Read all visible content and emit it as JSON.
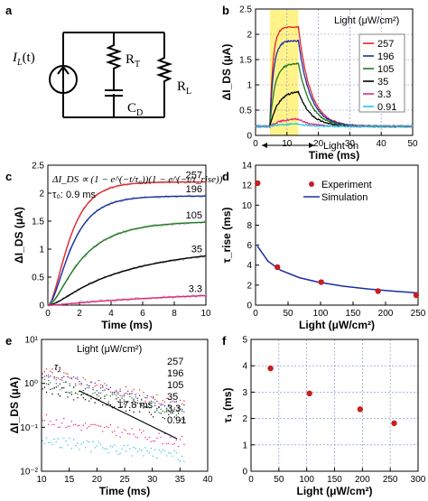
{
  "panel_labels": [
    "a",
    "b",
    "c",
    "d",
    "e",
    "f"
  ],
  "circuit": {
    "source": "I",
    "source_sub": "L",
    "source_arg": "(t)",
    "r1": "R",
    "r1_sub": "T",
    "cap": "C",
    "cap_sub": "D",
    "r2": "R",
    "r2_sub": "L"
  },
  "series_colors": {
    "257": "#e8242a",
    "196": "#1a2ea6",
    "105": "#1f7a1f",
    "35": "#000000",
    "3.3": "#e8247c",
    "0.91": "#1ec8e6"
  },
  "chart_data": [
    {
      "panel": "b",
      "type": "line",
      "xlabel": "Time (ms)",
      "ylabel": "ΔI_DS (μA)",
      "xlim": [
        -5,
        50
      ],
      "ylim": [
        -0.2,
        2.6
      ],
      "xticks": [
        "0",
        "10",
        "20",
        "30",
        "40",
        "50"
      ],
      "yticks": [
        "0",
        "0.5",
        "1",
        "1.5",
        "2",
        "2.5"
      ],
      "highlight": {
        "x": [
          0,
          10
        ],
        "color": "#fff38a"
      },
      "annotation": "Light on",
      "legend": {
        "title": "Light (μW/cm²)",
        "placement": "top-right",
        "entries": [
          "257",
          "196",
          "105",
          "35",
          "3.3",
          "0.91"
        ]
      },
      "series": [
        {
          "name": "257",
          "amp": 2.2,
          "tau": 1.1
        },
        {
          "name": "196",
          "amp": 1.9,
          "tau": 1.3
        },
        {
          "name": "105",
          "amp": 1.4,
          "tau": 1.8
        },
        {
          "name": "35",
          "amp": 0.8,
          "tau": 3.0
        },
        {
          "name": "3.3",
          "amp": 0.17,
          "tau": 3.5
        },
        {
          "name": "0.91",
          "amp": 0.06,
          "tau": 4.0
        }
      ]
    },
    {
      "panel": "c",
      "type": "line",
      "xlabel": "Time (ms)",
      "ylabel": "ΔI_DS (μA)",
      "xlim": [
        0,
        10
      ],
      "ylim": [
        0,
        2.5
      ],
      "xticks": [
        "0",
        "2",
        "4",
        "6",
        "8",
        "10"
      ],
      "yticks": [
        "0",
        "0.5",
        "1",
        "1.5",
        "2",
        "2.5"
      ],
      "equation": "ΔI_DS ∝ (1 − e^(−t/τ₀))(1 − e^(−t/τ_rise))",
      "tau0_label": "τ₀: 0.9 ms",
      "series": [
        {
          "name": "257",
          "amp": 2.2,
          "tau": 1.2
        },
        {
          "name": "196",
          "amp": 1.95,
          "tau": 1.4
        },
        {
          "name": "105",
          "amp": 1.5,
          "tau": 2.3
        },
        {
          "name": "35",
          "amp": 1.05,
          "tau": 5.5
        },
        {
          "name": "3.3",
          "amp": 0.3,
          "tau": 12
        }
      ]
    },
    {
      "panel": "d",
      "type": "scatter",
      "xlabel": "Light (μW/cm²)",
      "ylabel": "τ_rise (ms)",
      "xlim": [
        0,
        260
      ],
      "ylim": [
        0,
        14
      ],
      "xticks": [
        "0",
        "50",
        "100",
        "150",
        "200",
        "250"
      ],
      "yticks": [
        "0",
        "2",
        "4",
        "6",
        "8",
        "10",
        "12",
        "14"
      ],
      "legend": {
        "placement": "top-right",
        "entries": [
          "Experiment",
          "Simulation"
        ]
      },
      "experiment": {
        "x": [
          3.3,
          35,
          105,
          196,
          257
        ],
        "y": [
          12.2,
          3.8,
          2.3,
          1.4,
          1.0
        ]
      },
      "simulation": {
        "x": [
          3,
          20,
          40,
          70,
          100,
          140,
          180,
          220,
          260
        ],
        "y": [
          5.9,
          4.4,
          3.5,
          2.75,
          2.3,
          1.9,
          1.62,
          1.4,
          1.22
        ]
      }
    },
    {
      "panel": "e",
      "type": "scatter",
      "xlabel": "Time (ms)",
      "ylabel": "ΔI_DS (μA)",
      "yscale": "log",
      "xlim": [
        10,
        40
      ],
      "ylim": [
        0.01,
        10
      ],
      "xticks": [
        "10",
        "15",
        "20",
        "25",
        "30",
        "35",
        "40"
      ],
      "yticks": [
        "10⁻²",
        "10⁻¹",
        "10⁰",
        "10¹"
      ],
      "legend": {
        "title": "Light (μW/cm²)",
        "placement": "top-right",
        "entries": [
          "257",
          "196",
          "105",
          "35",
          "3.3",
          "0.91"
        ]
      },
      "tau1_label": "τ₁",
      "slope_label": "17.8 ms",
      "series": [
        {
          "name": "257",
          "amp": 1.9,
          "tau": 14
        },
        {
          "name": "196",
          "amp": 1.5,
          "tau": 15
        },
        {
          "name": "105",
          "amp": 1.1,
          "tau": 15.5
        },
        {
          "name": "35",
          "amp": 0.8,
          "tau": 16
        },
        {
          "name": "3.3",
          "amp": 0.15,
          "tau": 22
        },
        {
          "name": "0.91",
          "amp": 0.05,
          "tau": 30
        }
      ]
    },
    {
      "panel": "f",
      "type": "scatter",
      "xlabel": "Light (μW/cm²)",
      "ylabel": "τ₁ (ms)",
      "xlim": [
        0,
        300
      ],
      "ylim": [
        0,
        5
      ],
      "xticks": [
        "0",
        "50",
        "100",
        "150",
        "200",
        "250",
        "300"
      ],
      "yticks": [
        "0",
        "1",
        "2",
        "3",
        "4",
        "5"
      ],
      "x": [
        35,
        105,
        196,
        257
      ],
      "y": [
        3.9,
        2.95,
        2.35,
        1.82
      ]
    }
  ]
}
